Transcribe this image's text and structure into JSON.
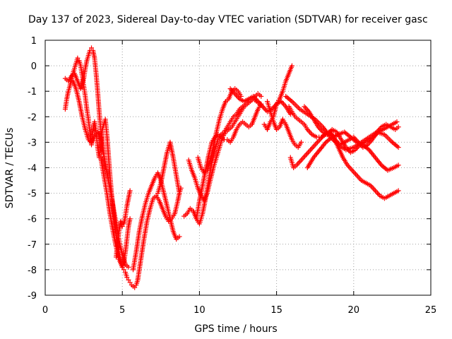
{
  "chart_data": {
    "type": "scatter",
    "title": "Day 137 of 2023, Sidereal Day-to-day VTEC variation (SDTVAR) for receiver gasc",
    "xlabel": "GPS time / hours",
    "ylabel": "SDTVAR / TECUs",
    "xlim": [
      0,
      25
    ],
    "ylim": [
      -9,
      1
    ],
    "x_ticks": [
      0,
      5,
      10,
      15,
      20,
      25
    ],
    "y_ticks": [
      1,
      0,
      -1,
      -2,
      -3,
      -4,
      -5,
      -6,
      -7,
      -8,
      -9
    ],
    "grid": true,
    "marker": "+",
    "color": "#ff0000",
    "series": [
      {
        "x": [
          1.3,
          1.4,
          1.5,
          1.6,
          1.7,
          1.8,
          1.9,
          2.0,
          2.1,
          2.2,
          2.3,
          2.4,
          2.5,
          2.6,
          2.7,
          2.8,
          2.9,
          3.0,
          3.1,
          3.2,
          3.3,
          3.4,
          3.5,
          3.6,
          3.7,
          3.8,
          3.9,
          4.0,
          4.1,
          4.2,
          4.3,
          4.4,
          4.5,
          4.6,
          4.7,
          4.8,
          4.9,
          5.0,
          5.1,
          5.2,
          5.3,
          5.4,
          5.5,
          5.6,
          5.7,
          5.8,
          5.9,
          6.0
        ],
        "y": [
          -1.7,
          -1.3,
          -1.0,
          -0.8,
          -0.5,
          -0.3,
          -0.1,
          0.1,
          0.3,
          0.2,
          0.0,
          -0.4,
          -0.8,
          -1.2,
          -1.7,
          -2.1,
          -2.6,
          -3.1,
          -2.5,
          -2.2,
          -2.6,
          -3.2,
          -3.6,
          -3.1,
          -2.5,
          -2.3,
          -2.1,
          -2.7,
          -3.5,
          -4.3,
          -5.0,
          -5.6,
          -6.1,
          -6.6,
          -7.0,
          -7.4,
          -7.7,
          -7.9,
          -8.0,
          -8.1,
          -8.3,
          -8.4,
          -8.5,
          -8.6,
          -8.65,
          -8.7,
          -8.6,
          -8.4
        ]
      },
      {
        "x": [
          1.3,
          1.5,
          1.7,
          1.9,
          2.1,
          2.3,
          2.5,
          2.6,
          2.7,
          2.8,
          2.9,
          3.0,
          3.1,
          3.2,
          3.3,
          3.4,
          3.5,
          3.6,
          3.7,
          3.8,
          3.9
        ],
        "y": [
          -0.5,
          -0.6,
          -0.4,
          -0.3,
          -0.6,
          -0.9,
          -0.5,
          -0.1,
          0.2,
          0.4,
          0.6,
          0.7,
          0.6,
          0.3,
          -0.3,
          -1.0,
          -1.8,
          -2.5,
          -3.0,
          -3.5,
          -4.0
        ]
      },
      {
        "x": [
          1.8,
          2.0,
          2.2,
          2.4,
          2.6,
          2.8,
          3.0,
          3.2,
          3.4,
          3.6,
          3.8,
          4.0,
          4.2,
          4.4,
          4.6,
          4.8,
          5.0,
          5.2,
          5.4
        ],
        "y": [
          -0.6,
          -0.9,
          -1.4,
          -2.0,
          -2.5,
          -2.9,
          -3.0,
          -2.8,
          -2.6,
          -2.9,
          -3.5,
          -4.2,
          -4.8,
          -5.5,
          -6.2,
          -6.9,
          -7.4,
          -7.8,
          -7.9
        ]
      },
      {
        "x": [
          3.6,
          3.8,
          4.0,
          4.2,
          4.4,
          4.6,
          4.8,
          5.0,
          5.1,
          5.2,
          5.3,
          5.4,
          5.5
        ],
        "y": [
          -3.6,
          -4.3,
          -5.0,
          -5.8,
          -6.5,
          -7.1,
          -7.6,
          -7.9,
          -7.7,
          -7.3,
          -6.8,
          -6.3,
          -6.0
        ]
      },
      {
        "x": [
          4.6,
          4.7,
          4.8,
          4.9,
          5.0,
          5.1,
          5.2,
          5.3,
          5.4,
          5.5
        ],
        "y": [
          -7.5,
          -6.9,
          -6.4,
          -6.1,
          -6.3,
          -6.2,
          -5.9,
          -5.5,
          -5.2,
          -4.9
        ]
      },
      {
        "x": [
          6.0,
          6.2,
          6.4,
          6.6,
          6.8,
          7.0,
          7.2,
          7.4,
          7.6,
          7.8,
          8.0,
          8.2,
          8.4,
          8.6,
          8.7,
          8.8
        ],
        "y": [
          -8.4,
          -7.6,
          -6.8,
          -6.1,
          -5.6,
          -5.2,
          -5.1,
          -5.3,
          -5.6,
          -5.9,
          -6.1,
          -6.0,
          -5.8,
          -5.3,
          -5.0,
          -4.8
        ]
      },
      {
        "x": [
          5.7,
          5.9,
          6.1,
          6.3,
          6.5,
          6.7,
          6.9,
          7.1,
          7.3,
          7.5,
          7.7,
          7.9,
          8.1,
          8.3,
          8.5,
          8.7
        ],
        "y": [
          -8.0,
          -7.3,
          -6.5,
          -5.9,
          -5.4,
          -5.0,
          -4.7,
          -4.4,
          -4.2,
          -4.5,
          -5.0,
          -5.5,
          -6.0,
          -6.5,
          -6.8,
          -6.7
        ]
      },
      {
        "x": [
          7.3,
          7.5,
          7.7,
          7.9,
          8.1,
          8.3,
          8.5,
          8.7
        ],
        "y": [
          -5.0,
          -4.6,
          -4.0,
          -3.4,
          -3.0,
          -3.6,
          -4.3,
          -5.0
        ]
      },
      {
        "x": [
          9.3,
          9.5,
          9.7,
          9.9,
          10.1,
          10.3,
          10.5,
          10.7,
          10.9,
          11.1,
          11.3,
          11.5,
          11.7,
          11.9,
          12.1,
          12.3,
          12.5,
          12.7,
          12.9,
          13.1,
          13.3,
          13.5,
          13.7,
          13.9,
          14.1
        ],
        "y": [
          -3.7,
          -4.1,
          -4.4,
          -4.8,
          -5.1,
          -5.3,
          -5.0,
          -4.5,
          -4.0,
          -3.6,
          -3.2,
          -2.8,
          -2.6,
          -2.5,
          -2.4,
          -2.2,
          -2.0,
          -1.8,
          -1.6,
          -1.5,
          -1.4,
          -1.3,
          -1.4,
          -1.5,
          -1.6
        ]
      },
      {
        "x": [
          9.0,
          9.2,
          9.4,
          9.6,
          9.8,
          10.0,
          10.2,
          10.4,
          10.6,
          10.8,
          11.0,
          11.2,
          11.4,
          11.6,
          11.8,
          12.0,
          12.2,
          12.4,
          12.6,
          12.8,
          13.0,
          13.2,
          13.4,
          13.6,
          13.8,
          14.0
        ],
        "y": [
          -5.9,
          -5.8,
          -5.6,
          -5.7,
          -6.0,
          -6.2,
          -5.8,
          -5.2,
          -4.5,
          -3.8,
          -3.3,
          -2.9,
          -2.7,
          -2.6,
          -2.4,
          -2.2,
          -2.0,
          -1.9,
          -1.7,
          -1.6,
          -1.5,
          -1.4,
          -1.3,
          -1.2,
          -1.1,
          -1.2
        ]
      },
      {
        "x": [
          9.8,
          10.0,
          10.2,
          10.4,
          10.6,
          10.8,
          11.0,
          11.2,
          11.4,
          11.6,
          11.8,
          12.0,
          12.2,
          12.4,
          12.6,
          12.8,
          13.0,
          13.2,
          13.4,
          13.6,
          13.8,
          14.0
        ],
        "y": [
          -6.0,
          -5.3,
          -4.7,
          -4.1,
          -3.5,
          -3.0,
          -2.8,
          -2.7,
          -2.8,
          -2.9,
          -2.9,
          -3.0,
          -2.8,
          -2.5,
          -2.3,
          -2.2,
          -2.3,
          -2.4,
          -2.3,
          -2.0,
          -1.7,
          -1.5
        ]
      },
      {
        "x": [
          9.9,
          10.1,
          10.3,
          10.5,
          10.7,
          10.9,
          11.1,
          11.3,
          11.5,
          11.7,
          11.9,
          12.1,
          12.3,
          12.5,
          12.7
        ],
        "y": [
          -3.6,
          -4.0,
          -4.2,
          -4.1,
          -3.7,
          -3.2,
          -2.6,
          -2.1,
          -1.7,
          -1.4,
          -1.3,
          -1.0,
          -0.9,
          -1.0,
          -1.2
        ]
      },
      {
        "x": [
          12.0,
          12.3,
          12.6,
          12.9,
          13.2,
          13.5,
          13.8,
          14.1,
          14.4,
          14.7,
          15.0,
          15.3,
          15.6,
          15.9
        ],
        "y": [
          -0.9,
          -1.1,
          -1.3,
          -1.4,
          -1.3,
          -1.2,
          -1.4,
          -1.6,
          -1.8,
          -1.7,
          -1.5,
          -1.4,
          -1.6,
          -1.9
        ]
      },
      {
        "x": [
          14.2,
          14.4,
          14.6,
          14.8,
          15.0,
          15.2,
          15.4,
          15.6,
          15.8,
          16.0
        ],
        "y": [
          -2.3,
          -2.5,
          -2.2,
          -2.0,
          -1.5,
          -1.3,
          -1.0,
          -0.6,
          -0.3,
          0.0
        ]
      },
      {
        "x": [
          14.4,
          14.6,
          14.8,
          15.0,
          15.2,
          15.4,
          15.6,
          15.8,
          16.0,
          16.2,
          16.4,
          16.6
        ],
        "y": [
          -1.4,
          -1.8,
          -2.2,
          -2.5,
          -2.4,
          -2.1,
          -2.3,
          -2.6,
          -2.9,
          -3.1,
          -3.2,
          -3.0
        ]
      },
      {
        "x": [
          15.8,
          16.0,
          16.2,
          16.4,
          16.6,
          16.8,
          17.0,
          17.3,
          17.6,
          17.9,
          18.2,
          18.5,
          18.8,
          19.1,
          19.4,
          19.7,
          20.0,
          20.3,
          20.6,
          20.9,
          21.2,
          21.5,
          21.8,
          22.1,
          22.4,
          22.7,
          22.9
        ],
        "y": [
          -1.6,
          -1.8,
          -2.0,
          -2.1,
          -2.2,
          -2.3,
          -2.5,
          -2.7,
          -2.8,
          -2.8,
          -2.7,
          -2.6,
          -2.9,
          -3.1,
          -3.0,
          -2.9,
          -2.8,
          -3.0,
          -3.2,
          -3.1,
          -2.9,
          -2.6,
          -2.4,
          -2.3,
          -2.4,
          -2.5,
          -2.4
        ]
      },
      {
        "x": [
          15.6,
          16.0,
          16.5,
          17.0,
          17.5,
          18.0,
          18.5,
          19.0,
          19.5,
          20.0,
          20.5,
          21.0,
          21.5,
          22.0,
          22.5,
          22.9
        ],
        "y": [
          -1.2,
          -1.4,
          -1.7,
          -1.9,
          -2.1,
          -2.4,
          -2.8,
          -3.1,
          -3.3,
          -3.2,
          -3.0,
          -2.8,
          -2.6,
          -2.7,
          -3.0,
          -3.2
        ]
      },
      {
        "x": [
          15.9,
          16.1,
          16.3,
          16.6,
          16.9,
          17.2,
          17.5,
          17.8,
          18.1,
          18.4,
          18.7,
          19.0,
          19.3,
          19.6,
          19.9,
          20.2,
          20.5,
          20.8,
          21.1,
          21.4,
          21.7,
          22.0,
          22.3,
          22.6,
          22.9
        ],
        "y": [
          -3.6,
          -4.0,
          -3.9,
          -3.7,
          -3.5,
          -3.3,
          -3.1,
          -2.9,
          -2.7,
          -2.6,
          -2.8,
          -3.2,
          -3.6,
          -3.9,
          -4.1,
          -4.3,
          -4.5,
          -4.6,
          -4.7,
          -4.9,
          -5.1,
          -5.2,
          -5.1,
          -5.0,
          -4.9
        ]
      },
      {
        "x": [
          16.8,
          17.1,
          17.4,
          17.7,
          18.0,
          18.3,
          18.6,
          18.9,
          19.2,
          19.5,
          19.8,
          20.1,
          20.4,
          20.7,
          21.0,
          21.3,
          21.6,
          21.9,
          22.2,
          22.5,
          22.8
        ],
        "y": [
          -1.6,
          -1.8,
          -2.1,
          -2.4,
          -2.6,
          -2.7,
          -2.5,
          -2.6,
          -2.9,
          -3.2,
          -3.4,
          -3.3,
          -3.1,
          -3.0,
          -2.9,
          -2.8,
          -2.6,
          -2.5,
          -2.4,
          -2.3,
          -2.2
        ]
      },
      {
        "x": [
          17.0,
          17.4,
          17.8,
          18.2,
          18.6,
          19.0,
          19.4,
          19.8,
          20.2,
          20.6,
          21.0,
          21.4,
          21.8,
          22.2,
          22.6,
          22.9
        ],
        "y": [
          -4.0,
          -3.6,
          -3.3,
          -3.0,
          -2.8,
          -2.7,
          -2.6,
          -2.8,
          -3.0,
          -3.1,
          -3.3,
          -3.6,
          -3.9,
          -4.1,
          -4.0,
          -3.9
        ]
      }
    ]
  }
}
